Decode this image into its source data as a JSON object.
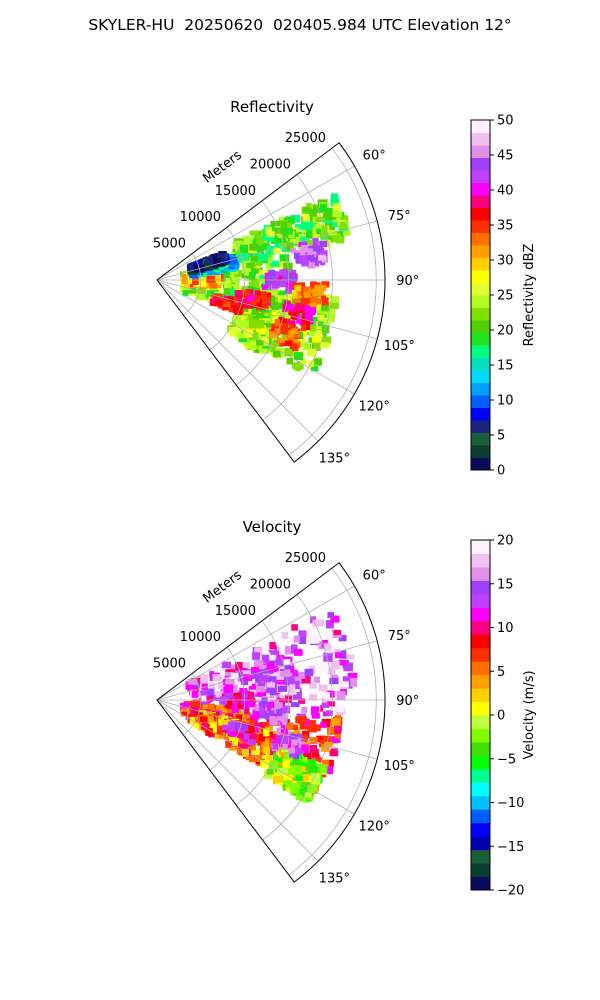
{
  "figure": {
    "suptitle": "SKYLER-HU  20250620  020405.984 UTC Elevation 12°"
  },
  "chart_data": [
    {
      "type": "heatmap",
      "projection": "polar sector",
      "title": "Reflectivity",
      "range_label": "Meters",
      "range_ticks": [
        5000,
        10000,
        15000,
        20000,
        25000
      ],
      "range_max": 26000,
      "azimuth_ticks": [
        "60°",
        "75°",
        "90°",
        "105°",
        "120°",
        "135°"
      ],
      "azimuth_tick_values": [
        60,
        75,
        90,
        105,
        120,
        135
      ],
      "azimuth_range": [
        53,
        143
      ],
      "grid": true,
      "colorbar": {
        "label": "Reflectivity dBZ",
        "ticks": [
          0,
          5,
          10,
          15,
          20,
          25,
          30,
          35,
          40,
          45,
          50
        ],
        "min": 0,
        "max": 50,
        "colors": [
          "#0b0b5e",
          "#0a3d2e",
          "#1b5e3a",
          "#1a237e",
          "#0000ff",
          "#0060ff",
          "#00a0ff",
          "#00d8ff",
          "#00e0c0",
          "#00ff80",
          "#20e020",
          "#50d000",
          "#80e000",
          "#b0ff20",
          "#e0ff30",
          "#ffff00",
          "#ffd000",
          "#ffa000",
          "#ff7000",
          "#ff3000",
          "#ff0000",
          "#ff0080",
          "#ff00ff",
          "#c040ff",
          "#a040ff",
          "#e090e8",
          "#f0c0f0",
          "#fff0ff"
        ]
      },
      "echo_regions": [
        {
          "az": [
            77,
            112
          ],
          "r": [
            3000,
            15500
          ],
          "dbz": 22
        },
        {
          "az": [
            64,
            78
          ],
          "r": [
            9000,
            22500
          ],
          "dbz": 21
        },
        {
          "az": [
            95,
            122
          ],
          "r": [
            10000,
            20500
          ],
          "dbz": 23
        },
        {
          "az": [
            84,
            94
          ],
          "r": [
            3000,
            7000
          ],
          "dbz": 30
        },
        {
          "az": [
            72,
            80
          ],
          "r": [
            4000,
            9000
          ],
          "dbz": 14
        },
        {
          "az": [
            68,
            74
          ],
          "r": [
            4000,
            8000
          ],
          "dbz": 3
        },
        {
          "az": [
            112,
            125
          ],
          "r": [
            10000,
            14500
          ],
          "dbz": 24
        }
      ],
      "echo_cores": [
        {
          "az": 80,
          "r": 17500,
          "dbz": 44
        },
        {
          "az": 90,
          "r": 14000,
          "dbz": 42
        },
        {
          "az": 101,
          "r": 11000,
          "dbz": 37
        },
        {
          "az": 108,
          "r": 8500,
          "dbz": 36
        },
        {
          "az": 104,
          "r": 16500,
          "dbz": 38
        },
        {
          "az": 113,
          "r": 16000,
          "dbz": 34
        },
        {
          "az": 95,
          "r": 17500,
          "dbz": 33
        }
      ]
    },
    {
      "type": "heatmap",
      "projection": "polar sector",
      "title": "Velocity",
      "range_label": "Meters",
      "range_ticks": [
        5000,
        10000,
        15000,
        20000,
        25000
      ],
      "range_max": 26000,
      "azimuth_ticks": [
        "60°",
        "75°",
        "90°",
        "105°",
        "120°",
        "135°"
      ],
      "azimuth_tick_values": [
        60,
        75,
        90,
        105,
        120,
        135
      ],
      "azimuth_range": [
        53,
        143
      ],
      "grid": true,
      "colorbar": {
        "label": "Velocity (m/s)",
        "ticks": [
          -20,
          -15,
          -10,
          -5,
          0,
          5,
          10,
          15,
          20
        ],
        "min": -20,
        "max": 20,
        "colors": [
          "#0b0b5e",
          "#0a3d2e",
          "#1b5e3a",
          "#0000b0",
          "#0000ff",
          "#0060ff",
          "#00c0ff",
          "#00ffff",
          "#00ff90",
          "#00ff00",
          "#40e000",
          "#80ff00",
          "#c0ff40",
          "#ffff00",
          "#ffd000",
          "#ffa000",
          "#ff7000",
          "#ff3000",
          "#ff0000",
          "#ff0080",
          "#ff00ff",
          "#c040ff",
          "#a040ff",
          "#e090e8",
          "#f0c0f0",
          "#fff0ff"
        ]
      },
      "echo_regions": [
        {
          "az": [
            62,
            95
          ],
          "r": [
            4000,
            22500
          ],
          "vel": 15
        },
        {
          "az": [
            95,
            116
          ],
          "r": [
            3000,
            21000
          ],
          "vel": 8
        },
        {
          "az": [
            105,
            122
          ],
          "r": [
            4000,
            14500
          ],
          "vel": 5
        },
        {
          "az": [
            72,
            86
          ],
          "r": [
            8000,
            16000
          ],
          "vel": 16
        },
        {
          "az": [
            112,
            124
          ],
          "r": [
            15000,
            20500
          ],
          "vel": -1
        }
      ],
      "echo_cores": [
        {
          "az": 96,
          "r": 13000,
          "vel": 14
        },
        {
          "az": 110,
          "r": 10000,
          "vel": 12
        },
        {
          "az": 108,
          "r": 16000,
          "vel": 14
        },
        {
          "az": 90,
          "r": 9000,
          "vel": 11
        }
      ]
    }
  ]
}
